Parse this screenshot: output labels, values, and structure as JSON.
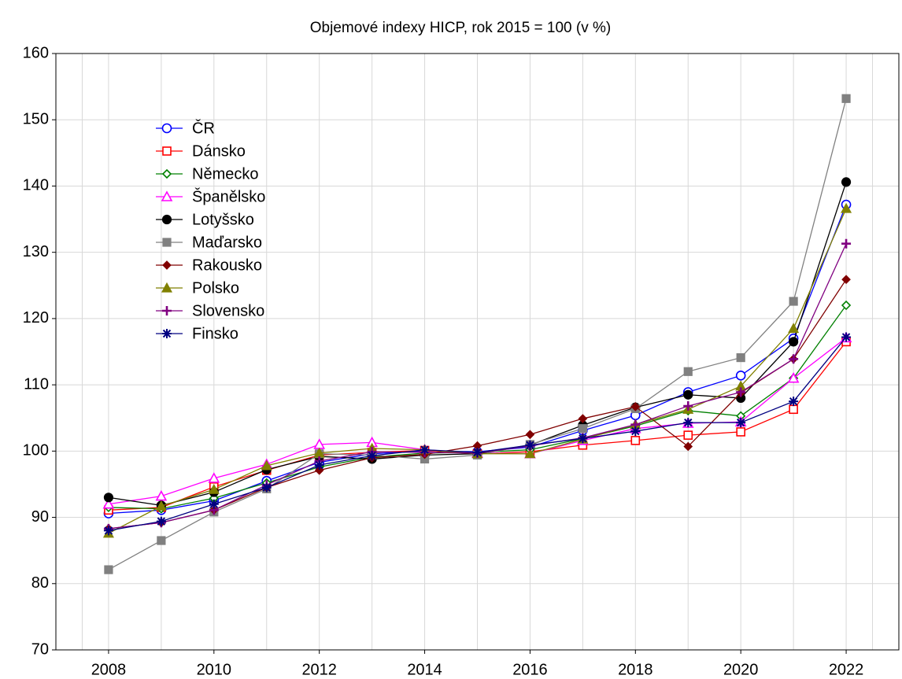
{
  "chart_data": {
    "type": "line",
    "title": "Objemové indexy HICP, rok 2015 = 100  (v %)",
    "x": [
      2008,
      2009,
      2010,
      2011,
      2012,
      2013,
      2014,
      2015,
      2016,
      2017,
      2018,
      2019,
      2020,
      2021,
      2022
    ],
    "xlim": [
      2007,
      2023
    ],
    "xticks": [
      2008,
      2010,
      2012,
      2014,
      2016,
      2018,
      2020,
      2022
    ],
    "ylim": [
      70,
      160
    ],
    "yticks": [
      70,
      80,
      90,
      100,
      110,
      120,
      130,
      140,
      150,
      160
    ],
    "grid": true,
    "minor_x_grid": true,
    "legend": "upper left",
    "series": [
      {
        "name": "ČR",
        "color": "#0000ff",
        "marker": "circle-open",
        "values": [
          90.6,
          91.1,
          92.5,
          95.5,
          98.3,
          99.6,
          100.0,
          99.9,
          100.6,
          103.1,
          105.4,
          108.9,
          111.4,
          117.0,
          137.2
        ]
      },
      {
        "name": "Dánsko",
        "color": "#ff0000",
        "marker": "square-open",
        "values": [
          91.1,
          91.5,
          94.6,
          97.1,
          99.4,
          99.8,
          100.1,
          99.6,
          99.9,
          100.9,
          101.6,
          102.4,
          102.9,
          106.3,
          116.5
        ]
      },
      {
        "name": "Německo",
        "color": "#008000",
        "marker": "diamond-open",
        "values": [
          91.5,
          91.3,
          92.9,
          95.2,
          97.6,
          99.1,
          99.7,
          99.8,
          100.2,
          101.9,
          103.8,
          106.1,
          105.3,
          111.0,
          122.0
        ]
      },
      {
        "name": "Španělsko",
        "color": "#ff00ff",
        "marker": "triangle-open",
        "values": [
          92.0,
          93.2,
          95.9,
          98.0,
          101.0,
          101.3,
          100.2,
          99.7,
          99.6,
          101.6,
          103.4,
          104.2,
          104.4,
          111.0,
          117.1
        ]
      },
      {
        "name": "Lotyšsko",
        "color": "#000000",
        "marker": "circle",
        "values": [
          93.0,
          91.8,
          93.8,
          97.2,
          99.2,
          98.8,
          99.4,
          99.6,
          100.9,
          103.9,
          106.6,
          108.5,
          108.0,
          116.5,
          140.6
        ]
      },
      {
        "name": "Maďarsko",
        "color": "#808080",
        "marker": "square",
        "values": [
          82.1,
          86.5,
          90.8,
          94.3,
          99.6,
          99.4,
          98.8,
          99.4,
          101.0,
          103.4,
          106.4,
          112.0,
          114.1,
          122.6,
          153.2
        ]
      },
      {
        "name": "Rakousko",
        "color": "#800000",
        "marker": "diamond",
        "values": [
          88.3,
          89.2,
          91.1,
          94.5,
          97.1,
          99.0,
          99.5,
          100.8,
          102.5,
          104.9,
          106.7,
          100.7,
          108.8,
          113.9,
          125.9
        ]
      },
      {
        "name": "Polsko",
        "color": "#808000",
        "marker": "triangle",
        "values": [
          87.6,
          91.7,
          94.2,
          97.8,
          99.7,
          100.4,
          100.2,
          99.6,
          99.6,
          101.8,
          104.0,
          106.3,
          109.8,
          118.5,
          136.6
        ]
      },
      {
        "name": "Slovensko",
        "color": "#800080",
        "marker": "plus",
        "values": [
          88.3,
          89.2,
          91.1,
          94.9,
          98.5,
          99.9,
          99.8,
          99.7,
          100.8,
          102.0,
          104.0,
          106.8,
          108.9,
          113.9,
          131.3
        ]
      },
      {
        "name": "Finsko",
        "color": "#000080",
        "marker": "asterisk",
        "values": [
          88.0,
          89.4,
          92.0,
          94.5,
          97.9,
          99.3,
          100.2,
          99.8,
          100.9,
          101.9,
          103.0,
          104.3,
          104.3,
          107.5,
          117.2
        ]
      }
    ]
  }
}
